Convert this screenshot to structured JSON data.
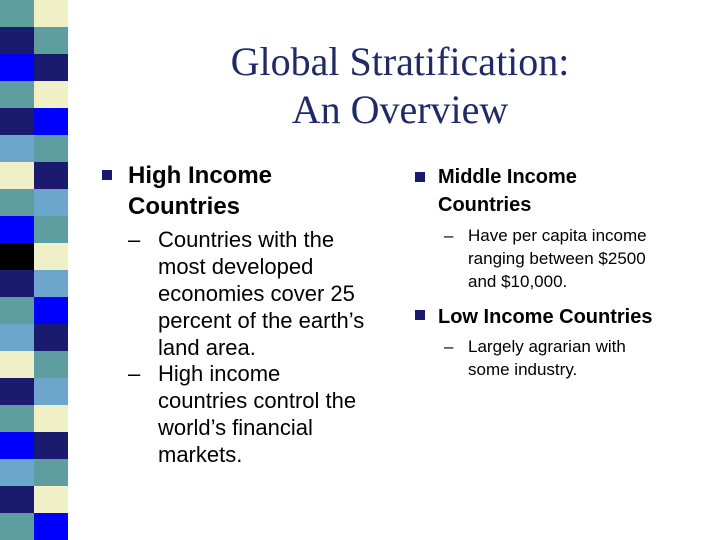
{
  "colors": {
    "title": "#1f2a66",
    "bullet": "#1a1a6e",
    "stripe_palette": [
      "#5f9ea0",
      "#1a1a6e",
      "#0000ff",
      "#f0f0c8",
      "#ffffff",
      "#000000",
      "#6ca6cd"
    ]
  },
  "title": {
    "line1": "Global Stratification:",
    "line2": "An Overview"
  },
  "left": {
    "heading_line1": "High Income",
    "heading_line2": "Countries",
    "sub1": [
      "Countries with the",
      "most developed",
      "economies cover 25",
      "percent of the earth’s",
      "land area."
    ],
    "sub2": [
      "High income",
      "countries control the",
      "world’s financial",
      "markets."
    ]
  },
  "right": {
    "middle_line1": "Middle Income",
    "middle_line2": "Countries",
    "middle_sub": [
      "Have per capita income",
      "ranging between $2500",
      "and $10,000."
    ],
    "low_heading": "Low Income Countries",
    "low_sub": [
      "Largely agrarian with",
      "some industry."
    ]
  },
  "dash": "–"
}
